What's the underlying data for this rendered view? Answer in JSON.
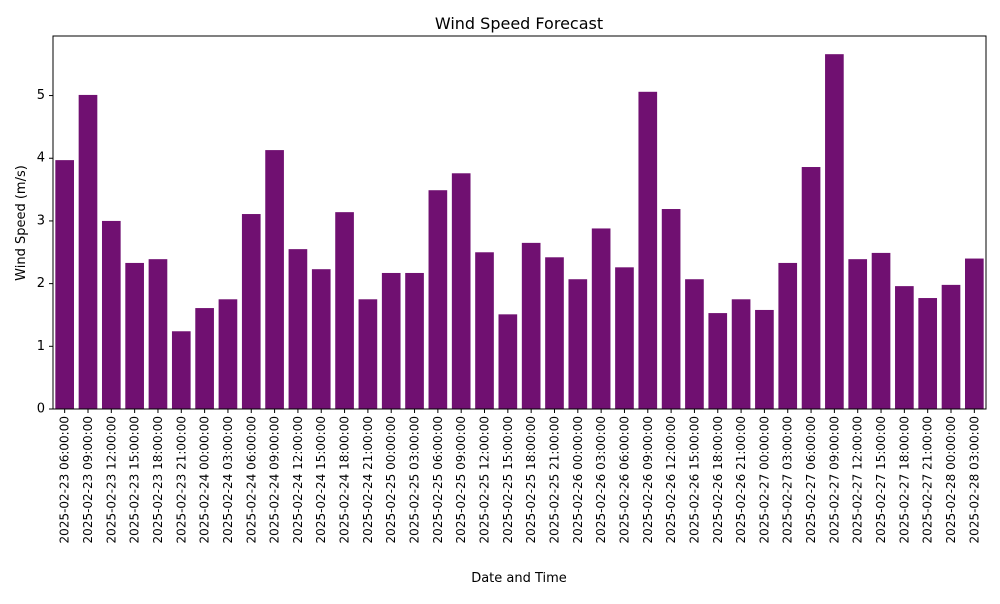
{
  "chart_data": {
    "type": "bar",
    "title": "Wind Speed Forecast",
    "xlabel": "Date and Time",
    "ylabel": "Wind Speed (m/s)",
    "ylim": [
      0,
      5.95
    ],
    "yticks": [
      0,
      1,
      2,
      3,
      4,
      5
    ],
    "grid": false,
    "bar_color": "#701071",
    "categories": [
      "2025-02-23 06:00:00",
      "2025-02-23 09:00:00",
      "2025-02-23 12:00:00",
      "2025-02-23 15:00:00",
      "2025-02-23 18:00:00",
      "2025-02-23 21:00:00",
      "2025-02-24 00:00:00",
      "2025-02-24 03:00:00",
      "2025-02-24 06:00:00",
      "2025-02-24 09:00:00",
      "2025-02-24 12:00:00",
      "2025-02-24 15:00:00",
      "2025-02-24 18:00:00",
      "2025-02-24 21:00:00",
      "2025-02-25 00:00:00",
      "2025-02-25 03:00:00",
      "2025-02-25 06:00:00",
      "2025-02-25 09:00:00",
      "2025-02-25 12:00:00",
      "2025-02-25 15:00:00",
      "2025-02-25 18:00:00",
      "2025-02-25 21:00:00",
      "2025-02-26 00:00:00",
      "2025-02-26 03:00:00",
      "2025-02-26 06:00:00",
      "2025-02-26 09:00:00",
      "2025-02-26 12:00:00",
      "2025-02-26 15:00:00",
      "2025-02-26 18:00:00",
      "2025-02-26 21:00:00",
      "2025-02-27 00:00:00",
      "2025-02-27 03:00:00",
      "2025-02-27 06:00:00",
      "2025-02-27 09:00:00",
      "2025-02-27 12:00:00",
      "2025-02-27 15:00:00",
      "2025-02-27 18:00:00",
      "2025-02-27 21:00:00",
      "2025-02-28 00:00:00",
      "2025-02-28 03:00:00"
    ],
    "values": [
      3.97,
      5.01,
      3.0,
      2.33,
      2.39,
      1.24,
      1.61,
      1.75,
      3.11,
      4.13,
      2.55,
      2.23,
      3.14,
      1.75,
      2.17,
      2.17,
      3.49,
      3.76,
      2.5,
      1.51,
      2.65,
      2.42,
      2.07,
      2.88,
      2.26,
      5.06,
      3.19,
      2.07,
      1.53,
      1.75,
      1.58,
      2.33,
      3.86,
      5.66,
      2.39,
      2.49,
      1.96,
      1.77,
      1.98,
      2.4
    ]
  }
}
